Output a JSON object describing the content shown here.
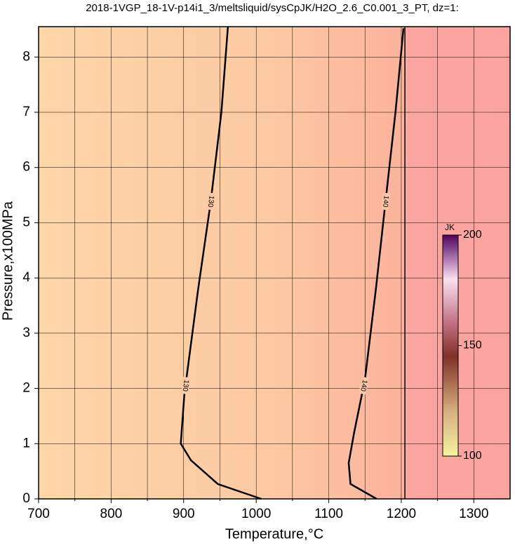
{
  "chart_data": {
    "type": "contour",
    "title": "2018-1VGP_18-1V-p14i1_3/meltsliquid/sysCpJK/H2O_2.6_C0.001_3_PT, dz=1:",
    "xlabel": "Temperature,°C",
    "ylabel": "Pressure,x100MPa",
    "xlim": [
      700,
      1350
    ],
    "ylim": [
      0,
      8.55
    ],
    "xticks": [
      700,
      800,
      900,
      1000,
      1100,
      1200,
      1300
    ],
    "xminorticks": [
      750,
      850,
      950,
      1050,
      1150,
      1250
    ],
    "yticks": [
      0,
      1,
      2,
      3,
      4,
      5,
      6,
      7,
      8
    ],
    "grid": true,
    "contours": [
      {
        "level": 130,
        "x": [
          1007,
          947,
          910,
          896,
          901,
          920,
          937,
          952,
          961
        ],
        "y": [
          0,
          0.27,
          0.7,
          1.0,
          1.9,
          3.8,
          5.35,
          7,
          8.55
        ]
      },
      {
        "level": 140,
        "x": [
          1166,
          1130,
          1127.5,
          1135,
          1150,
          1165,
          1179,
          1192,
          1203
        ],
        "y": [
          0,
          0.27,
          0.65,
          1.2,
          2.17,
          3.8,
          5.47,
          7,
          8.52
        ]
      }
    ],
    "boundary": {
      "x": [
        1205,
        1205
      ],
      "y": [
        0,
        8.55
      ]
    },
    "colorbar": {
      "label": "JK",
      "lim": [
        100,
        200
      ],
      "ticks": [
        100,
        150,
        200
      ]
    }
  }
}
